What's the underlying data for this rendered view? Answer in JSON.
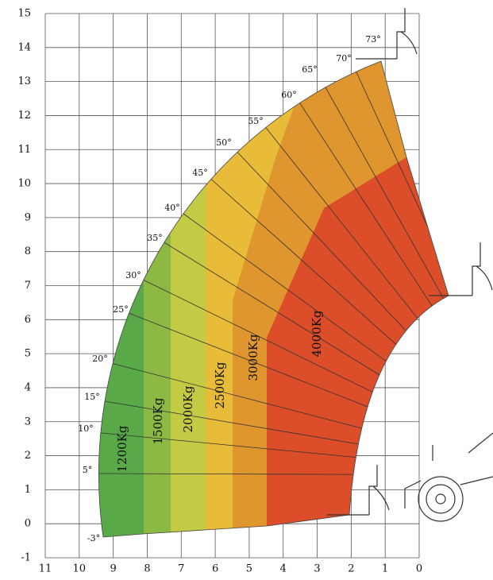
{
  "axis": {
    "xticks": [
      11,
      10,
      9,
      8,
      7,
      6,
      5,
      4,
      3,
      2,
      1,
      0
    ],
    "yticks": [
      15,
      14,
      13,
      12,
      11,
      10,
      9,
      8,
      7,
      6,
      5,
      4,
      3,
      2,
      1,
      0,
      -1
    ]
  },
  "angles": [
    "-3°",
    "5°",
    "10°",
    "15°",
    "20°",
    "25°",
    "30°",
    "35°",
    "40°",
    "45°",
    "50°",
    "55°",
    "60°",
    "65°",
    "70°",
    "73°"
  ],
  "zones": [
    "1200Kg",
    "1500Kg",
    "2000Kg",
    "2500Kg",
    "3000Kg",
    "4000Kg"
  ]
}
